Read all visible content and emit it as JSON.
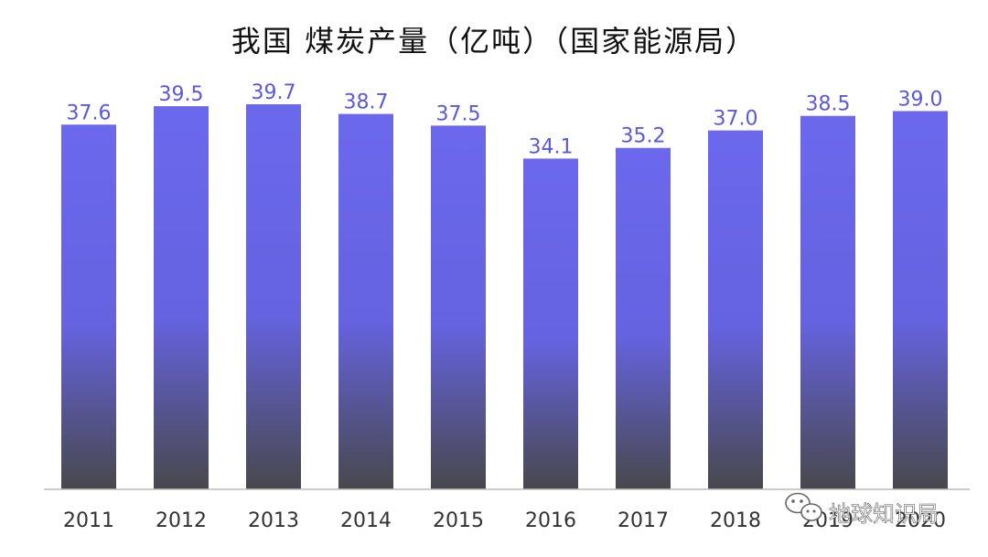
{
  "chart_data": {
    "type": "bar",
    "title": "我国 煤炭产量（亿吨）（国家能源局）",
    "categories": [
      "2011",
      "2012",
      "2013",
      "2014",
      "2015",
      "2016",
      "2017",
      "2018",
      "2019",
      "2020"
    ],
    "values": [
      37.6,
      39.5,
      39.7,
      38.7,
      37.5,
      34.1,
      35.2,
      37.0,
      38.5,
      39.0
    ],
    "value_labels": [
      "37.6",
      "39.5",
      "39.7",
      "38.7",
      "37.5",
      "34.1",
      "35.2",
      "37.0",
      "38.5",
      "39.0"
    ],
    "xlabel": "",
    "ylabel": "",
    "ylim": [
      0,
      39.7
    ],
    "grid": false,
    "colors": {
      "bar_top": "#6b68ee",
      "bar_bottom": "#4a4a4e",
      "label": "#5b58e0",
      "axis": "#bbbbbb"
    }
  },
  "watermark": {
    "text": "地球知识局",
    "icon": "wechat-icon"
  }
}
